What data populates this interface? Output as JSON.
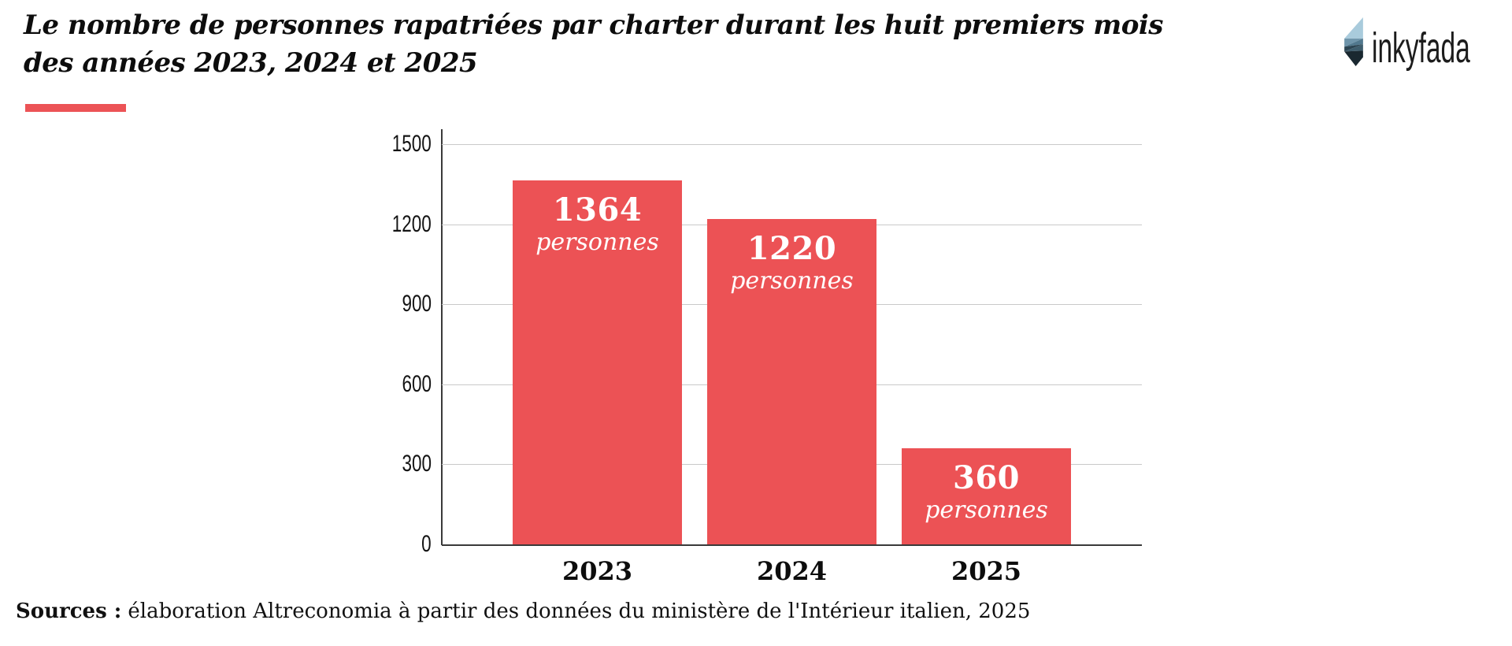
{
  "header": {
    "title_line1": "Le nombre de personnes rapatriées par charter durant les huit premiers mois",
    "title_line2": "des années 2023, 2024 et 2025",
    "accent_color": "#EC5356"
  },
  "logo": {
    "text": "inkyfada",
    "gem_colors": [
      "#A9CBDC",
      "#6F95AB",
      "#51788E",
      "#2C4553",
      "#3E5D6D",
      "#1A2830"
    ]
  },
  "chart_data": {
    "type": "bar",
    "title": "Le nombre de personnes rapatriées par charter durant les huit premiers mois des années 2023, 2024 et 2025",
    "categories": [
      "2023",
      "2024",
      "2025"
    ],
    "values": [
      1364,
      1220,
      360
    ],
    "bar_label_unit": "personnes",
    "xlabel": "",
    "ylabel": "",
    "ylim": [
      0,
      1500
    ],
    "yticks": [
      0,
      300,
      600,
      900,
      1200,
      1500
    ],
    "grid": true,
    "legend": false,
    "bar_color": "#EC5255",
    "bar_label_color": "#FFFFFF",
    "axis_color": "#3A3A3A",
    "gridline_color": "#C9C9C9"
  },
  "footer": {
    "sources_label": "Sources :",
    "sources_text": "élaboration Altreconomia à partir des données du ministère de l'Intérieur italien, 2025"
  }
}
